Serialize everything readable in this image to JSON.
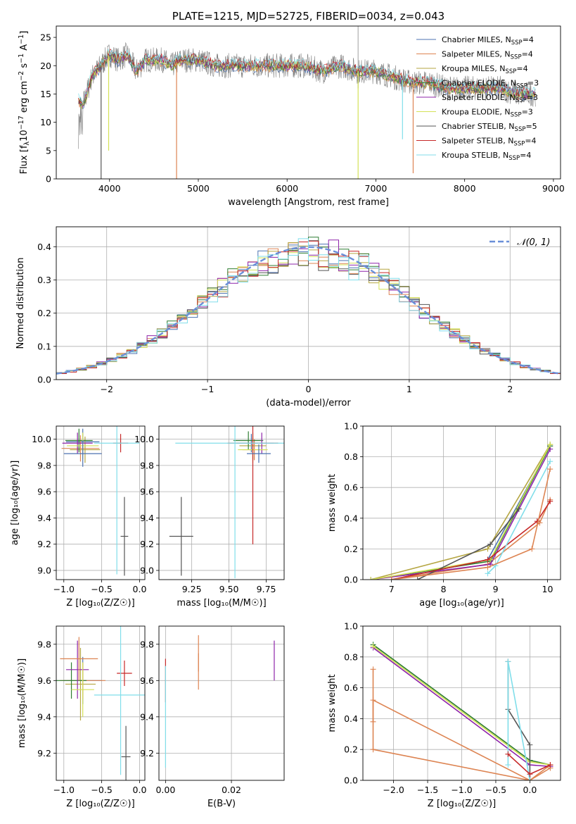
{
  "chart_data": [
    {
      "id": "spectrum",
      "type": "line",
      "title": "PLATE=1215, MJD=52725, FIBERID=0034, z=0.043",
      "xlabel": "wavelength [Angstrom, rest frame]",
      "ylabel": "Flux [f",
      "ylabel_sub": "λ",
      "ylabel_rest": "10",
      "ylabel_exp": "−17",
      "ylabel_unit": " erg cm",
      "ylabel_unit_exp": "−2",
      "ylabel_unit2": " s",
      "ylabel_unit2_exp": "−1",
      "ylabel_unit3": " A",
      "ylabel_unit3_exp": "−1",
      "ylabel_end": "]",
      "xlim": [
        3400,
        9080
      ],
      "ylim": [
        0,
        27
      ],
      "xticks": [
        4000,
        5000,
        6000,
        7000,
        8000,
        9000
      ],
      "yticks": [
        0,
        5,
        10,
        15,
        20,
        25
      ],
      "grid": false,
      "legend_position": "top-right",
      "series": [
        {
          "name": "Chabrier MILES, N",
          "sub": "SSP",
          "suffix": "=4",
          "color": "#4c72b0"
        },
        {
          "name": "Salpeter MILES, N",
          "sub": "SSP",
          "suffix": "=4",
          "color": "#dd8452"
        },
        {
          "name": "Kroupa MILES, N",
          "sub": "SSP",
          "suffix": "=4",
          "color": "#b5a642"
        },
        {
          "name": "Chabrier ELODIE, N",
          "sub": "SSP",
          "suffix": "=3",
          "color": "#2e7d32"
        },
        {
          "name": "Salpeter ELODIE, N",
          "sub": "SSP",
          "suffix": "=3",
          "color": "#8e24aa"
        },
        {
          "name": "Kroupa ELODIE, N",
          "sub": "SSP",
          "suffix": "=3",
          "color": "#d4e157"
        },
        {
          "name": "Chabrier STELIB, N",
          "sub": "SSP",
          "suffix": "=5",
          "color": "#555555"
        },
        {
          "name": "Salpeter STELIB, N",
          "sub": "SSP",
          "suffix": "=4",
          "color": "#c62828"
        },
        {
          "name": "Kroupa STELIB, N",
          "sub": "SSP",
          "suffix": "=4",
          "color": "#80deea"
        }
      ],
      "data_wavelength": [
        3650,
        3700,
        3800,
        3900,
        4000,
        4100,
        4200,
        4300,
        4400,
        4500,
        4600,
        4700,
        4800,
        4900,
        5000,
        5200,
        5400,
        5600,
        5800,
        6000,
        6200,
        6400,
        6600,
        6800,
        7000,
        7200,
        7400,
        7600,
        7800,
        8000,
        8200,
        8400,
        8600,
        8800
      ],
      "data_flux": [
        14,
        13,
        18,
        20,
        22,
        21,
        22,
        19,
        21,
        21,
        21,
        20,
        21,
        21,
        21,
        20,
        20,
        20,
        20,
        20,
        20,
        19,
        20,
        19,
        19,
        18,
        17,
        17,
        16,
        16,
        16,
        16,
        15,
        15
      ]
    },
    {
      "id": "residuals",
      "type": "step",
      "xlabel": "(data-model)/error",
      "ylabel": "Normed distribution",
      "xlim": [
        -2.5,
        2.5
      ],
      "ylim": [
        0,
        0.46
      ],
      "xticks": [
        -2,
        -1,
        0,
        1,
        2
      ],
      "yticks": [
        0.0,
        0.1,
        0.2,
        0.3,
        0.4
      ],
      "grid": true,
      "legend_position": "top-right",
      "legend_label": "𝒩(0, 1)",
      "bin_width": 0.1
    },
    {
      "id": "age-vs-Z",
      "type": "scatter",
      "xlabel": "Z [log₁₀(Z/Z☉)]",
      "ylabel": "age  [log₁₀(age/yr)]",
      "xlim": [
        -1.1,
        0.07
      ],
      "ylim": [
        8.93,
        10.1
      ],
      "xticks": [
        -1.0,
        -0.5,
        0.0
      ],
      "yticks": [
        9.0,
        9.2,
        9.4,
        9.6,
        9.8,
        10.0
      ],
      "grid": true,
      "points": [
        {
          "x": -0.75,
          "y": 9.98,
          "xerr": 0.22,
          "yerr": 0.1,
          "series": 0
        },
        {
          "x": -0.78,
          "y": 9.93,
          "xerr": 0.25,
          "yerr": 0.1,
          "series": 1
        },
        {
          "x": -0.72,
          "y": 9.92,
          "xerr": 0.2,
          "yerr": 0.1,
          "series": 2
        },
        {
          "x": -0.8,
          "y": 9.99,
          "xerr": 0.18,
          "yerr": 0.09,
          "series": 3
        },
        {
          "x": -0.82,
          "y": 9.97,
          "xerr": 0.2,
          "yerr": 0.08,
          "series": 4
        },
        {
          "x": -0.75,
          "y": 9.95,
          "xerr": 0.21,
          "yerr": 0.1,
          "series": 5
        },
        {
          "x": -0.2,
          "y": 9.26,
          "xerr": 0.05,
          "yerr": 0.3,
          "series": 6
        },
        {
          "x": -0.25,
          "y": 9.97,
          "xerr": 0.1,
          "yerr": 0.07,
          "series": 7
        },
        {
          "x": -0.3,
          "y": 9.97,
          "xerr": 0.3,
          "yerr": 1.0,
          "series": 8
        },
        {
          "x": -0.75,
          "y": 9.89,
          "xerr": 0.25,
          "yerr": 0.1,
          "series": 0
        }
      ]
    },
    {
      "id": "age-vs-mass",
      "type": "scatter",
      "xlabel": "mass [log₁₀(M/M☉)]",
      "ylabel": "",
      "xlim": [
        9.03,
        9.87
      ],
      "ylim": [
        8.93,
        10.1
      ],
      "xticks": [
        9.25,
        9.5,
        9.75
      ],
      "yticks": [
        9.0,
        9.2,
        9.4,
        9.6,
        9.8,
        10.0
      ],
      "grid": true,
      "points": [
        {
          "x": 9.65,
          "y": 9.97,
          "xerr": 0.1,
          "yerr": 0.07,
          "series": 0
        },
        {
          "x": 9.67,
          "y": 9.92,
          "xerr": 0.08,
          "yerr": 0.08,
          "series": 1
        },
        {
          "x": 9.66,
          "y": 9.95,
          "xerr": 0.09,
          "yerr": 0.1,
          "series": 2
        },
        {
          "x": 9.63,
          "y": 9.99,
          "xerr": 0.1,
          "yerr": 0.07,
          "series": 3
        },
        {
          "x": 9.72,
          "y": 9.97,
          "xerr": 0.08,
          "yerr": 0.08,
          "series": 4
        },
        {
          "x": 9.66,
          "y": 9.92,
          "xerr": 0.1,
          "yerr": 0.1,
          "series": 5
        },
        {
          "x": 9.18,
          "y": 9.26,
          "xerr": 0.08,
          "yerr": 0.3,
          "series": 6
        },
        {
          "x": 9.66,
          "y": 9.97,
          "xerr": 0.17,
          "yerr": 0.77,
          "series": 7
        },
        {
          "x": 9.54,
          "y": 9.97,
          "xerr": 0.4,
          "yerr": 1.03,
          "series": 8
        },
        {
          "x": 9.7,
          "y": 9.89,
          "xerr": 0.08,
          "yerr": 0.07,
          "series": 0
        }
      ]
    },
    {
      "id": "massweight-vs-age",
      "type": "line",
      "xlabel": "age  [log₁₀(age/yr)]",
      "ylabel": "mass weight",
      "xlim": [
        6.45,
        10.25
      ],
      "ylim": [
        0,
        1
      ],
      "xticks": [
        7,
        8,
        9,
        10
      ],
      "yticks": [
        0.0,
        0.2,
        0.4,
        0.6,
        0.8,
        1.0
      ],
      "grid": true,
      "series": [
        {
          "x": [
            7.0,
            8.85,
            10.05
          ],
          "y": [
            0.0,
            0.13,
            0.87
          ],
          "s": 0
        },
        {
          "x": [
            7.0,
            8.85,
            9.85,
            10.05
          ],
          "y": [
            0.0,
            0.1,
            0.37,
            0.52
          ],
          "s": 1
        },
        {
          "x": [
            6.6,
            8.85,
            10.05
          ],
          "y": [
            0.0,
            0.2,
            0.88
          ],
          "s": 2
        },
        {
          "x": [
            6.6,
            8.9,
            10.05
          ],
          "y": [
            0.0,
            0.12,
            0.87
          ],
          "s": 3
        },
        {
          "x": [
            6.6,
            8.9,
            10.05
          ],
          "y": [
            0.0,
            0.1,
            0.85
          ],
          "s": 4
        },
        {
          "x": [
            6.6,
            8.9,
            10.05
          ],
          "y": [
            0.0,
            0.13,
            0.88
          ],
          "s": 5
        },
        {
          "x": [
            7.5,
            8.9,
            9.45
          ],
          "y": [
            0.0,
            0.23,
            0.46
          ],
          "s": 6
        },
        {
          "x": [
            7.0,
            8.85,
            9.8,
            10.05
          ],
          "y": [
            0.0,
            0.13,
            0.38,
            0.51
          ],
          "s": 7
        },
        {
          "x": [
            8.85,
            9.0,
            10.05
          ],
          "y": [
            0.04,
            0.09,
            0.77
          ],
          "s": 8
        },
        {
          "x": [
            7.0,
            8.85,
            9.7,
            10.05
          ],
          "y": [
            0.0,
            0.08,
            0.2,
            0.72
          ],
          "s": 1
        }
      ]
    },
    {
      "id": "mass-vs-Z",
      "type": "scatter",
      "xlabel": "Z [log₁₀(Z/Z☉)]",
      "ylabel": "mass [log₁₀(M/M☉)]",
      "xlim": [
        -1.1,
        0.07
      ],
      "ylim": [
        9.05,
        9.9
      ],
      "xticks": [
        -1.0,
        -0.5,
        0.0
      ],
      "yticks": [
        9.2,
        9.4,
        9.6,
        9.8
      ],
      "grid": true,
      "points": [
        {
          "x": -0.75,
          "y": 9.6,
          "xerr": 0.25,
          "yerr": 0.13,
          "series": 0
        },
        {
          "x": -0.75,
          "y": 9.6,
          "xerr": 0.3,
          "yerr": 0.1,
          "series": 1
        },
        {
          "x": -0.78,
          "y": 9.58,
          "xerr": 0.2,
          "yerr": 0.2,
          "series": 2
        },
        {
          "x": -0.9,
          "y": 9.6,
          "xerr": 0.2,
          "yerr": 0.1,
          "series": 3
        },
        {
          "x": -0.82,
          "y": 9.66,
          "xerr": 0.15,
          "yerr": 0.16,
          "series": 4
        },
        {
          "x": -0.75,
          "y": 9.55,
          "xerr": 0.15,
          "yerr": 0.15,
          "series": 5
        },
        {
          "x": -0.18,
          "y": 9.18,
          "xerr": 0.06,
          "yerr": 0.17,
          "series": 6
        },
        {
          "x": -0.2,
          "y": 9.64,
          "xerr": 0.1,
          "yerr": 0.07,
          "series": 7
        },
        {
          "x": -0.25,
          "y": 9.52,
          "xerr": 0.35,
          "yerr": 0.44,
          "series": 8
        },
        {
          "x": -0.8,
          "y": 9.72,
          "xerr": 0.25,
          "yerr": 0.12,
          "series": 1
        }
      ]
    },
    {
      "id": "mass-vs-ebv",
      "type": "scatter",
      "xlabel": "E(B-V)",
      "ylabel": "",
      "xlim": [
        -0.002,
        0.036
      ],
      "ylim": [
        9.05,
        9.9
      ],
      "xticks": [
        0.0,
        0.02
      ],
      "yticks": [
        9.2,
        9.4,
        9.6,
        9.8
      ],
      "grid": true,
      "points": [
        {
          "x": 0.0,
          "y": 9.6,
          "xerr": 0,
          "yerr": 0.12,
          "series": 7
        },
        {
          "x": 0.0,
          "y": 9.4,
          "xerr": 0,
          "yerr": 0.28,
          "series": 8
        },
        {
          "x": 0.01,
          "y": 9.65,
          "xerr": 0,
          "yerr": 0.1,
          "series": 1
        },
        {
          "x": 0.01,
          "y": 9.75,
          "xerr": 0,
          "yerr": 0.1,
          "series": 1
        },
        {
          "x": 0.033,
          "y": 9.71,
          "xerr": 0,
          "yerr": 0.11,
          "series": 4
        }
      ]
    },
    {
      "id": "massweight-vs-Z",
      "type": "line",
      "xlabel": "Z [log₁₀(Z/Z☉)]",
      "ylabel": "mass weight",
      "xlim": [
        -2.45,
        0.45
      ],
      "ylim": [
        0,
        1
      ],
      "xticks": [
        -2.0,
        -1.5,
        -1.0,
        -0.5,
        0.0
      ],
      "yticks": [
        0.0,
        0.2,
        0.4,
        0.6,
        0.8,
        1.0
      ],
      "grid": true,
      "series": [
        {
          "x": [
            -2.3,
            0.0,
            0.3
          ],
          "y": [
            0.88,
            0.13,
            0.1
          ],
          "s": 3
        },
        {
          "x": [
            -2.3,
            0.0,
            0.3
          ],
          "y": [
            0.86,
            0.1,
            0.09
          ],
          "s": 4
        },
        {
          "x": [
            -2.3,
            0.0,
            0.3
          ],
          "y": [
            0.87,
            0.12,
            0.1
          ],
          "s": 5
        },
        {
          "x": [
            -2.3,
            -2.3,
            0.0,
            0.3
          ],
          "y": [
            0.38,
            0.52,
            0.0,
            0.1
          ],
          "s": 1
        },
        {
          "x": [
            -2.3,
            -2.3,
            0.0,
            0.3
          ],
          "y": [
            0.72,
            0.2,
            0.0,
            0.08
          ],
          "s": 1
        },
        {
          "x": [
            -0.32,
            -0.32,
            0.0,
            0.0
          ],
          "y": [
            0.77,
            0.46,
            0.23,
            0.0
          ],
          "s": 6
        },
        {
          "x": [
            -0.32,
            -0.32,
            0.0
          ],
          "y": [
            0.1,
            0.77,
            0.0
          ],
          "s": 8
        },
        {
          "x": [
            -0.32,
            0.0,
            0.3
          ],
          "y": [
            0.17,
            0.04,
            0.1
          ],
          "s": 7
        }
      ]
    }
  ]
}
